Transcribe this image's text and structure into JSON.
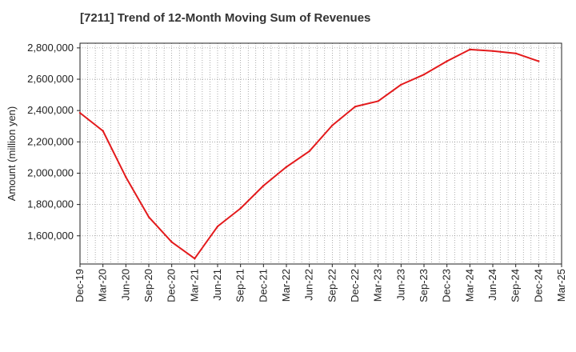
{
  "chart_data": {
    "type": "line",
    "title": "[7211]  Trend of 12-Month Moving Sum of Revenues",
    "xlabel": "",
    "ylabel": "Amount (million yen)",
    "ylim": [
      1420000,
      2830000
    ],
    "yticks": [
      1600000,
      1800000,
      2000000,
      2200000,
      2400000,
      2600000,
      2800000
    ],
    "ytick_labels": [
      "1,600,000",
      "1,800,000",
      "2,000,000",
      "2,200,000",
      "2,400,000",
      "2,600,000",
      "2,800,000"
    ],
    "x_tick_labels": [
      "Dec-19",
      "Mar-20",
      "Jun-20",
      "Sep-20",
      "Dec-20",
      "Mar-21",
      "Jun-21",
      "Sep-21",
      "Dec-21",
      "Mar-22",
      "Jun-22",
      "Sep-22",
      "Dec-22",
      "Mar-23",
      "Jun-23",
      "Sep-23",
      "Dec-23",
      "Mar-24",
      "Jun-24",
      "Sep-24",
      "Dec-24",
      "Mar-25"
    ],
    "grid": true,
    "series": [
      {
        "color": "#e31a1c",
        "x": [
          "Dec-19",
          "Mar-20",
          "Jun-20",
          "Sep-20",
          "Dec-20",
          "Mar-21",
          "Jun-21",
          "Sep-21",
          "Dec-21",
          "Mar-22",
          "Jun-22",
          "Sep-22",
          "Dec-22",
          "Mar-23",
          "Jun-23",
          "Sep-23",
          "Dec-23",
          "Mar-24",
          "Jun-24",
          "Sep-24",
          "Dec-24"
        ],
        "values": [
          2385000,
          2270000,
          1975000,
          1720000,
          1560000,
          1455000,
          1660000,
          1775000,
          1920000,
          2040000,
          2140000,
          2305000,
          2425000,
          2460000,
          2565000,
          2630000,
          2715000,
          2790000,
          2780000,
          2765000,
          2715000
        ]
      }
    ]
  }
}
